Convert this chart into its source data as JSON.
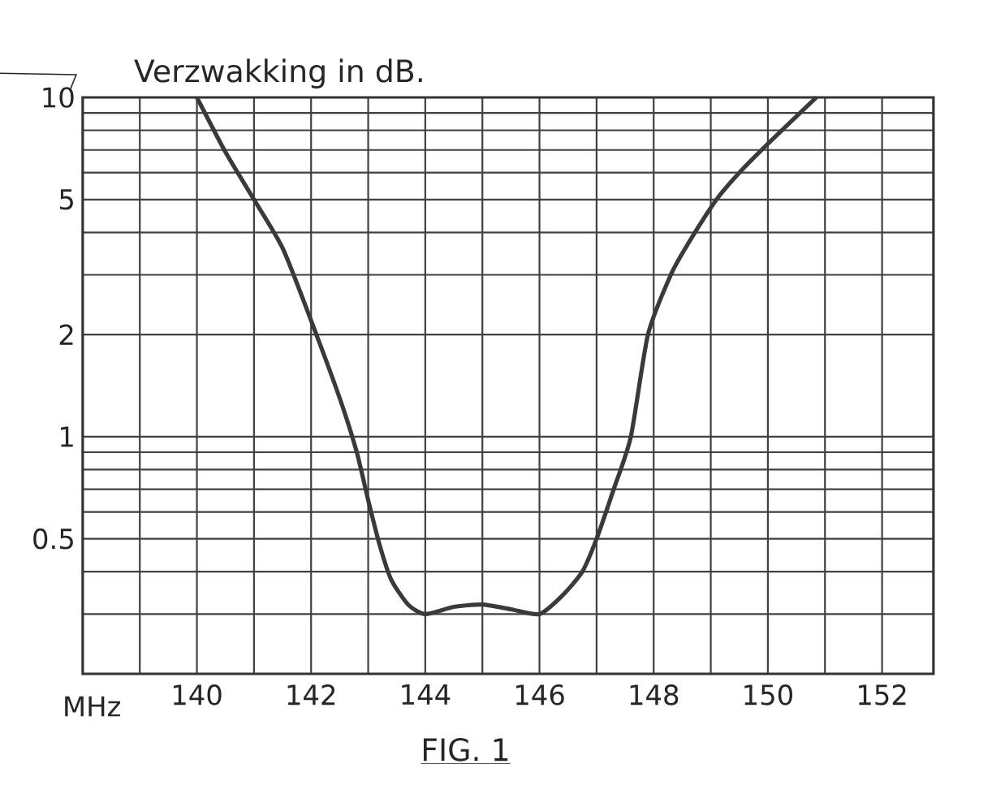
{
  "chart_data": {
    "type": "line",
    "title": "FIG. 1",
    "ylabel": "Verzwakking in dB.",
    "xlabel": "MHz",
    "x": [
      140,
      140.5,
      141,
      141.5,
      142,
      142.5,
      142.8,
      143,
      143.2,
      143.4,
      143.7,
      144,
      144.5,
      145,
      145.5,
      146,
      146.4,
      146.75,
      147,
      147.3,
      147.6,
      147.9,
      148.3,
      148.6,
      149.1,
      149.5,
      150,
      150.85
    ],
    "series": [
      {
        "color": "#3a3a3a",
        "values": [
          10,
          6.9,
          5,
          3.6,
          2.2,
          1.3,
          0.9,
          0.65,
          0.48,
          0.38,
          0.32,
          0.3,
          0.315,
          0.32,
          0.31,
          0.3,
          0.34,
          0.4,
          0.5,
          0.7,
          1,
          2,
          3,
          3.7,
          5,
          6,
          7.3,
          10
        ]
      }
    ],
    "log": "y",
    "grid": true,
    "marker": "none",
    "line_style": "solid",
    "xlim": [
      138,
      152.9
    ],
    "ylim": [
      0.2,
      10
    ],
    "xticks": [
      {
        "value": 139,
        "label": null
      },
      140,
      {
        "value": 141,
        "label": null
      },
      142,
      {
        "value": 143,
        "label": null
      },
      144,
      {
        "value": 145,
        "label": null
      },
      146,
      {
        "value": 147,
        "label": null
      },
      148,
      {
        "value": 149,
        "label": null
      },
      150,
      {
        "value": 151,
        "label": null
      },
      152
    ],
    "yticks": [
      {
        "value": 0.3,
        "label": null
      },
      {
        "value": 0.4,
        "label": null
      },
      0.5,
      {
        "value": 0.6,
        "label": null
      },
      {
        "value": 0.7,
        "label": null
      },
      {
        "value": 0.8,
        "label": null
      },
      {
        "value": 0.9,
        "label": null
      },
      1,
      2,
      {
        "value": 3,
        "label": null
      },
      {
        "value": 4,
        "label": null
      },
      5,
      {
        "value": 6,
        "label": null
      },
      {
        "value": 7,
        "label": null
      },
      {
        "value": 8,
        "label": null
      },
      {
        "value": 9,
        "label": null
      },
      10
    ]
  }
}
